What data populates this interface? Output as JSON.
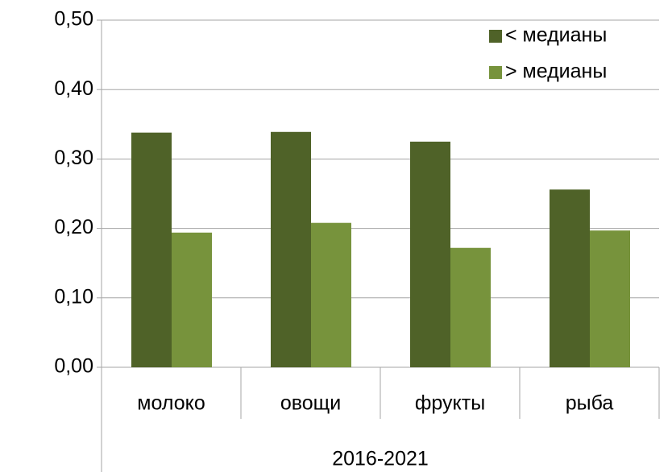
{
  "chart_data": {
    "type": "bar",
    "categories": [
      "молоко",
      "овощи",
      "фрукты",
      "рыба"
    ],
    "group_label": "2016-2021",
    "series": [
      {
        "name": "< медианы",
        "color": "#4f6228",
        "values": [
          0.338,
          0.339,
          0.325,
          0.256
        ]
      },
      {
        "name": "> медианы",
        "color": "#77933c",
        "values": [
          0.194,
          0.208,
          0.172,
          0.197
        ]
      }
    ],
    "ylim": [
      0,
      0.5
    ],
    "yticks": [
      {
        "value": 0,
        "label": "0,00"
      },
      {
        "value": 0.1,
        "label": "0,10"
      },
      {
        "value": 0.2,
        "label": "0,20"
      },
      {
        "value": 0.3,
        "label": "0,30"
      },
      {
        "value": 0.4,
        "label": "0,40"
      },
      {
        "value": 0.5,
        "label": "0,50"
      }
    ],
    "grid": true,
    "legend": "top-right"
  }
}
